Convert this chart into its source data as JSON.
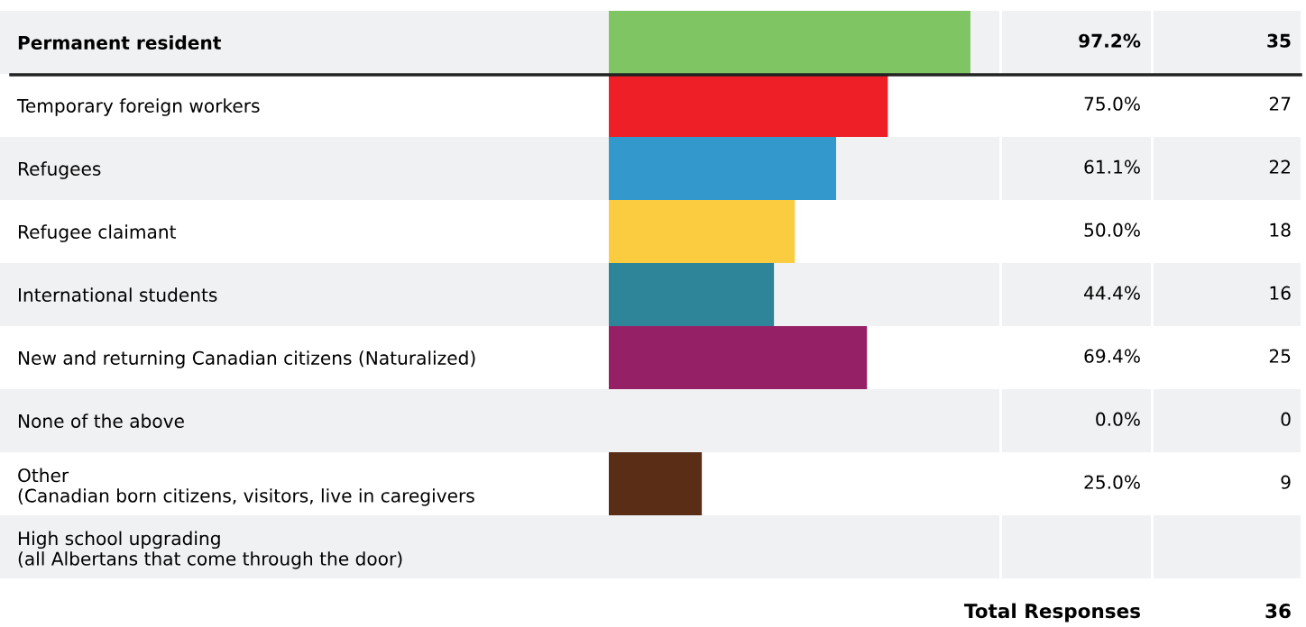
{
  "chart_data": {
    "type": "bar",
    "orientation": "horizontal",
    "categories": [
      "Permanent resident",
      "Temporary foreign workers",
      "Refugees",
      "Refugee claimant",
      "International students",
      "New and returning Canadian citizens (Naturalized)",
      "None of the above",
      "Other\n(Canadian born citizens, visitors, live in caregivers",
      "High school upgrading\n(all Albertans that come through the door)"
    ],
    "values": [
      97.2,
      75.0,
      61.1,
      50.0,
      44.4,
      69.4,
      0.0,
      25.0,
      null
    ],
    "colors": [
      "#80c563",
      "#ee1f26",
      "#3399cc",
      "#fbcc40",
      "#2e8599",
      "#962066",
      "#f7941d",
      "#5a2d17",
      "#5a2d17"
    ],
    "value_labels": [
      "97.2%",
      "75.0%",
      "61.1%",
      "50.0%",
      "44.4%",
      "69.4%",
      "0.0%",
      "25.0%",
      null
    ],
    "tick_labels": "y",
    "grid": false,
    "legend": false,
    "annotations": [
      "35",
      "27",
      "22",
      "18",
      "16",
      "25",
      "0",
      "9",
      "Total Responses",
      "36"
    ]
  }
}
